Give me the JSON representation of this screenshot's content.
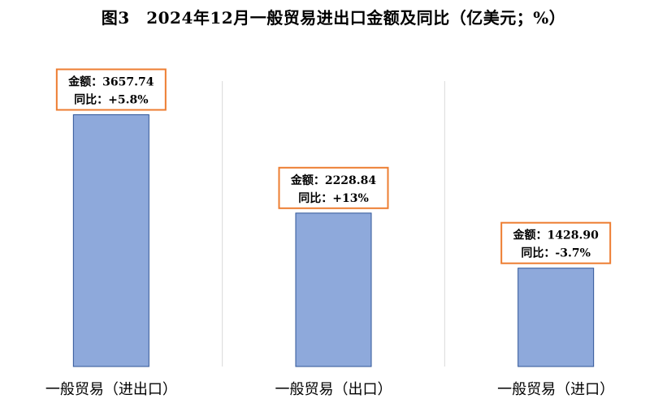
{
  "chart_data": {
    "type": "bar",
    "title": "图3　2024年12月一般贸易进出口金额及同比（亿美元；%）",
    "xlabel": "",
    "ylabel": "",
    "categories": [
      "一般贸易（进出口）",
      "一般贸易（出口）",
      "一般贸易（进口）"
    ],
    "values": [
      3657.74,
      2228.84,
      1428.9
    ],
    "data_labels": [
      {
        "amount": "金额：3657.74",
        "yoy": "同比：+5.8%"
      },
      {
        "amount": "金额：2228.84",
        "yoy": "同比：+13%"
      },
      {
        "amount": "金额：1428.90",
        "yoy": "同比：-3.7%"
      }
    ],
    "ylim": [
      0,
      4500
    ],
    "grid": false,
    "category_dividers": true,
    "colors": {
      "bar": "#8EA9DB",
      "bar_border": "#2F5597",
      "label_border": "#ED7D31",
      "divider": "#D9D9D9"
    }
  }
}
